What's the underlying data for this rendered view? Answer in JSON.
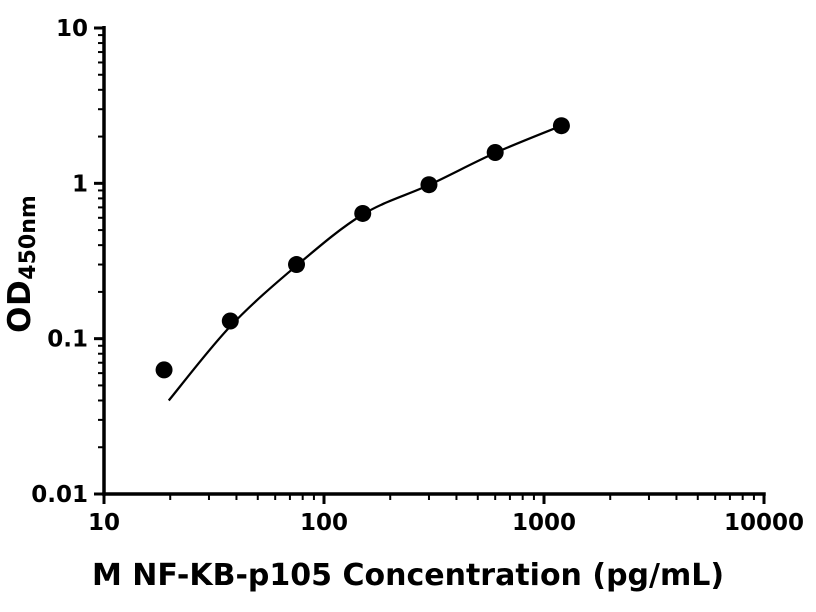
{
  "page": {
    "background": "#ffffff"
  },
  "chart_data": {
    "type": "scatter",
    "title": "",
    "xlabel": "M NF-KB-p105 Concentration (pg/mL)",
    "ylabel_main": "OD",
    "ylabel_sub": "450nm",
    "x_scale": "log",
    "y_scale": "log",
    "xlim": [
      10,
      10000
    ],
    "ylim": [
      0.01,
      10
    ],
    "x_ticks": [
      "10",
      "100",
      "1000",
      "10000"
    ],
    "y_ticks": [
      "10",
      "1",
      "0.1",
      "0.01"
    ],
    "grid": false,
    "legend": "none",
    "axis_color": "#000000",
    "marker_color": "#000000",
    "curve_color": "#000000",
    "points": [
      {
        "x": 18.75,
        "y": 0.063
      },
      {
        "x": 37.5,
        "y": 0.13
      },
      {
        "x": 75,
        "y": 0.3
      },
      {
        "x": 150,
        "y": 0.64
      },
      {
        "x": 300,
        "y": 0.98
      },
      {
        "x": 600,
        "y": 1.58
      },
      {
        "x": 1200,
        "y": 2.35
      }
    ],
    "curve": [
      {
        "x": 19.7,
        "y": 0.04
      },
      {
        "x": 37.5,
        "y": 0.12
      },
      {
        "x": 75,
        "y": 0.295
      },
      {
        "x": 150,
        "y": 0.63
      },
      {
        "x": 300,
        "y": 0.975
      },
      {
        "x": 600,
        "y": 1.57
      },
      {
        "x": 1200,
        "y": 2.35
      }
    ]
  }
}
